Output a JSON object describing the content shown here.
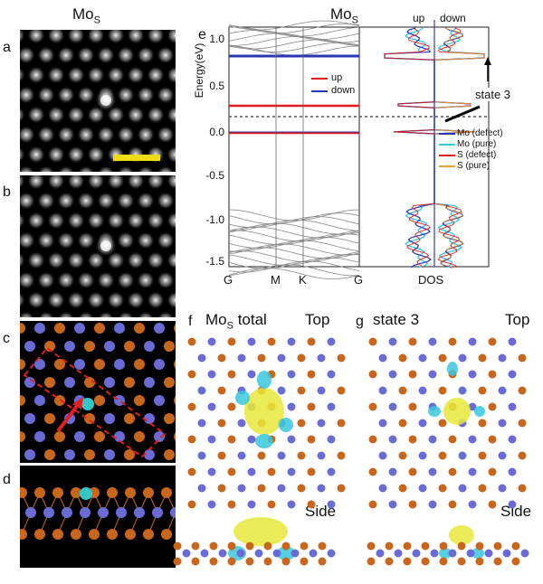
{
  "left_title": {
    "main": "Mo",
    "sub": "S"
  },
  "panel_labels": {
    "a": "a",
    "b": "b",
    "c": "c",
    "d": "d",
    "e": "e",
    "f": "f",
    "g": "g"
  },
  "panel_e": {
    "title_main": "Mo",
    "title_sub": "S",
    "dos_header_up": "up",
    "dos_header_down": "down",
    "ylabel": "Energy(eV)",
    "yticks": [
      "1.0",
      "0.5",
      "0.0",
      "-0.5",
      "-1.0",
      "-1.5"
    ],
    "xticks": [
      "G",
      "M",
      "K",
      "G"
    ],
    "dos_xlabel": "DOS",
    "band_legend": [
      "up",
      "down"
    ],
    "dos_legend": [
      "Mo (defect)",
      "Mo (pure)",
      "S (defect)",
      "S (pure)"
    ],
    "annotation": "state 3",
    "colors": {
      "up": "#e11b1b",
      "down": "#2b35b5",
      "mo_pure": "#36c6dd",
      "s_pure": "#e8a03a",
      "bands": "#888888"
    }
  },
  "panel_f": {
    "title_main": "Mo",
    "title_sub": "S",
    "title_rest": " total",
    "top": "Top",
    "side": "Side"
  },
  "panel_g": {
    "title": "state 3",
    "top": "Top",
    "side": "Side"
  },
  "atom_colors": {
    "mo": "#6b6bd6",
    "s": "#c9661e",
    "defect": "#34c6c6",
    "iso_yellow": "#e6e83a",
    "iso_cyan": "#38c8dc"
  }
}
